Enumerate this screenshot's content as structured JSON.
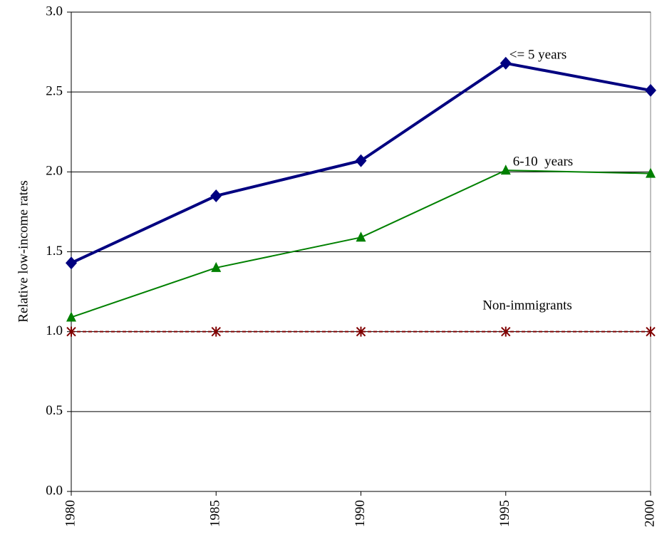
{
  "chart_data": {
    "type": "line",
    "y_label": "Relative low-income rates",
    "x": [
      1980,
      1985,
      1990,
      1995,
      2000
    ],
    "xlim": [
      1980,
      2000
    ],
    "xticks": [
      1980,
      1985,
      1990,
      1995,
      2000
    ],
    "ylim": [
      0,
      3
    ],
    "yticks": [
      {
        "value": 0,
        "label": "0.0"
      },
      0.5,
      {
        "value": 1,
        "label": "1.0"
      },
      1.5,
      {
        "value": 2,
        "label": "2.0"
      },
      2.5,
      {
        "value": 3,
        "label": "3.0"
      }
    ],
    "grid": true,
    "series": [
      {
        "name": "<= 5 years",
        "color": "#000080",
        "marker": "diamond",
        "values": [
          1.43,
          1.85,
          2.07,
          2.68,
          2.51
        ]
      },
      {
        "name": "6-10  years",
        "color": "#008000",
        "marker": "triangle",
        "values": [
          1.09,
          1.4,
          1.59,
          2.01,
          1.99
        ]
      },
      {
        "name": "Non-immigrants",
        "color": "#800000",
        "marker": "asterisk",
        "dashed": true,
        "values": [
          1.0,
          1.0,
          1.0,
          1.0,
          1.0
        ]
      }
    ]
  }
}
